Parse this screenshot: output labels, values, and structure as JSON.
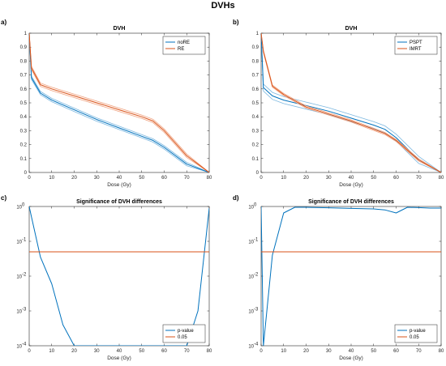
{
  "figure": {
    "title": "DVHs"
  },
  "colors": {
    "blue": "#0072bd",
    "orange": "#d95319",
    "light_blue": "#7db8e0",
    "light_orange": "#f0a27f"
  },
  "chart_data": [
    {
      "panel": "a)",
      "type": "line",
      "title": "DVH",
      "xlabel": "Dose (Gy)",
      "ylabel": "",
      "xlim": [
        0,
        80
      ],
      "ylim": [
        0,
        1
      ],
      "xticks": [
        0,
        10,
        20,
        30,
        40,
        50,
        60,
        70,
        80
      ],
      "yticks": [
        0,
        0.1,
        0.2,
        0.3,
        0.4,
        0.5,
        0.6,
        0.7,
        0.8,
        0.9,
        1
      ],
      "legend": "top-right",
      "x": [
        0,
        1,
        5,
        10,
        20,
        30,
        40,
        50,
        55,
        60,
        70,
        80
      ],
      "series": [
        {
          "name": "noRE",
          "color": "blue",
          "values": [
            1.0,
            0.68,
            0.57,
            0.52,
            0.45,
            0.38,
            0.32,
            0.26,
            0.23,
            0.18,
            0.06,
            0.0
          ],
          "band": 0.012
        },
        {
          "name": "RE",
          "color": "orange",
          "values": [
            1.0,
            0.75,
            0.63,
            0.6,
            0.55,
            0.5,
            0.45,
            0.4,
            0.37,
            0.3,
            0.12,
            0.0
          ],
          "band": 0.012
        }
      ]
    },
    {
      "panel": "b)",
      "type": "line",
      "title": "DVH",
      "xlabel": "Dose (Gy)",
      "ylabel": "",
      "xlim": [
        0,
        80
      ],
      "ylim": [
        0,
        1
      ],
      "xticks": [
        0,
        10,
        20,
        30,
        40,
        50,
        60,
        70,
        80
      ],
      "yticks": [
        0,
        0.1,
        0.2,
        0.3,
        0.4,
        0.5,
        0.6,
        0.7,
        0.8,
        0.9,
        1
      ],
      "legend": "top-right",
      "x": [
        0,
        1,
        5,
        10,
        20,
        30,
        40,
        50,
        55,
        60,
        70,
        80
      ],
      "series": [
        {
          "name": "PSPT",
          "color": "blue",
          "values": [
            1.0,
            0.61,
            0.55,
            0.52,
            0.48,
            0.44,
            0.39,
            0.34,
            0.31,
            0.25,
            0.09,
            0.0
          ],
          "band": 0.025
        },
        {
          "name": "IMRT",
          "color": "orange",
          "values": [
            1.0,
            0.87,
            0.62,
            0.56,
            0.47,
            0.42,
            0.37,
            0.31,
            0.28,
            0.23,
            0.09,
            0.0
          ],
          "band": 0.008
        }
      ]
    },
    {
      "panel": "c)",
      "type": "line",
      "title": "Significance of DVH differences",
      "xlabel": "Dose (Gy)",
      "ylabel": "",
      "yscale": "log",
      "xlim": [
        0,
        80
      ],
      "ylim": [
        0.0001,
        1
      ],
      "xticks": [
        0,
        10,
        20,
        30,
        40,
        50,
        60,
        70,
        80
      ],
      "yticks": [
        0.0001,
        0.001,
        0.01,
        0.1,
        1
      ],
      "ytick_labels": [
        "10",
        "10",
        "10",
        "10",
        "10"
      ],
      "ytick_exponents": [
        "-4",
        "-3",
        "-2",
        "-1",
        "0"
      ],
      "legend": "bottom-right",
      "x": [
        0,
        1,
        5,
        10,
        15,
        20,
        25,
        30,
        40,
        50,
        60,
        65,
        70,
        75,
        80
      ],
      "series": [
        {
          "name": "p-value",
          "color": "blue",
          "values": [
            1.0,
            0.5,
            0.035,
            0.006,
            0.0004,
            0.0001,
            0.0001,
            0.0001,
            0.0001,
            0.0001,
            0.0001,
            0.0001,
            0.0001,
            0.001,
            0.9
          ]
        },
        {
          "name": "0.05",
          "color": "orange",
          "constant": 0.05
        }
      ]
    },
    {
      "panel": "d)",
      "type": "line",
      "title": "Significance of DVH differences",
      "xlabel": "Dose (Gy)",
      "ylabel": "",
      "yscale": "log",
      "xlim": [
        0,
        80
      ],
      "ylim": [
        0.0001,
        1
      ],
      "xticks": [
        0,
        10,
        20,
        30,
        40,
        50,
        60,
        70,
        80
      ],
      "yticks": [
        0.0001,
        0.001,
        0.01,
        0.1,
        1
      ],
      "ytick_labels": [
        "10",
        "10",
        "10",
        "10",
        "10"
      ],
      "ytick_exponents": [
        "-4",
        "-3",
        "-2",
        "-1",
        "0"
      ],
      "legend": "bottom-right",
      "x": [
        0,
        1,
        5,
        10,
        15,
        20,
        30,
        40,
        50,
        55,
        60,
        65,
        70,
        75,
        80
      ],
      "series": [
        {
          "name": "p-value",
          "color": "blue",
          "values": [
            1.0,
            0.0001,
            0.04,
            0.65,
            0.95,
            0.95,
            0.92,
            0.88,
            0.85,
            0.8,
            0.65,
            0.95,
            0.93,
            0.9,
            0.9
          ]
        },
        {
          "name": "0.05",
          "color": "orange",
          "constant": 0.05
        }
      ]
    }
  ]
}
